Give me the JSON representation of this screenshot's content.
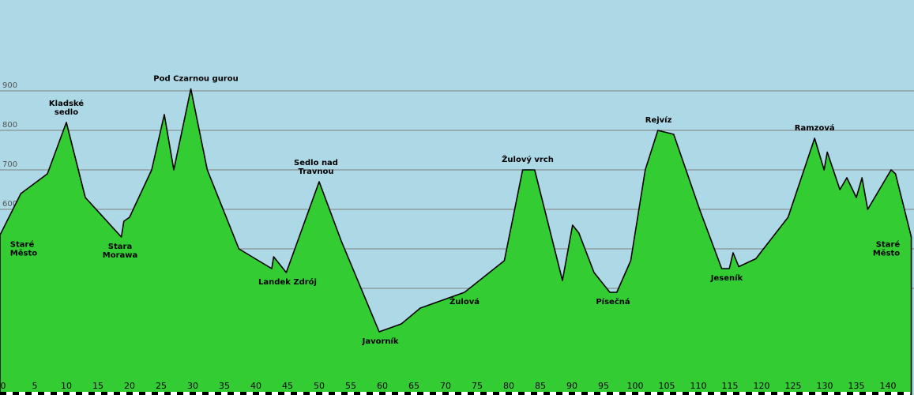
{
  "chart_data": {
    "type": "area",
    "title": "",
    "xlabel": "",
    "ylabel": "",
    "xlim": [
      0,
      144
    ],
    "ylim": [
      0,
      1000
    ],
    "grid": true,
    "colors": {
      "background": "#add8e6",
      "fill": "#33cc33",
      "line": "#000000",
      "grid": "#7f7f7f"
    },
    "y_ticks": [
      600,
      700,
      800,
      900
    ],
    "x_ticks": [
      0,
      5,
      10,
      15,
      20,
      25,
      30,
      35,
      40,
      45,
      50,
      55,
      60,
      65,
      70,
      75,
      80,
      85,
      90,
      95,
      100,
      105,
      110,
      115,
      120,
      125,
      130,
      135,
      140
    ],
    "profile": {
      "x": [
        0,
        3.3,
        7.5,
        10.5,
        13.5,
        19.2,
        19.6,
        20.5,
        24,
        26,
        27.5,
        30.2,
        32.8,
        37.8,
        43,
        43.3,
        45.3,
        50.5,
        54,
        60,
        63.5,
        66.5,
        73.5,
        79.8,
        82.7,
        84.6,
        89,
        90.6,
        91.6,
        94,
        96.5,
        97.6,
        99.8,
        102.1,
        104.1,
        106.6,
        110.7,
        114.2,
        115.4,
        116,
        116.9,
        119.6,
        124.7,
        128.9,
        130.4,
        130.9,
        132.9,
        134,
        135.5,
        136.4,
        137.3,
        141,
        141.7,
        144.2
      ],
      "y": [
        535,
        640,
        690,
        820,
        630,
        530,
        570,
        580,
        700,
        840,
        700,
        905,
        700,
        500,
        450,
        480,
        440,
        670,
        520,
        290,
        310,
        350,
        390,
        470,
        700,
        700,
        420,
        560,
        540,
        440,
        390,
        390,
        470,
        700,
        800,
        790,
        600,
        450,
        450,
        490,
        455,
        475,
        580,
        780,
        700,
        745,
        650,
        680,
        630,
        680,
        600,
        700,
        690,
        530
      ]
    },
    "places": [
      {
        "name": [
          "Staré",
          "Město"
        ],
        "x": 1.6,
        "y": 535,
        "pos": "below"
      },
      {
        "name": [
          "Kladské",
          "sedlo"
        ],
        "x": 10.5,
        "y": 820,
        "pos": "above"
      },
      {
        "name": [
          "Stara",
          "Morawa"
        ],
        "x": 19,
        "y": 530,
        "pos": "below"
      },
      {
        "name": [
          "Pod Czarnou gurou"
        ],
        "x": 31,
        "y": 905,
        "pos": "above"
      },
      {
        "name": [
          "Landek Zdrój"
        ],
        "x": 45.5,
        "y": 440,
        "pos": "below"
      },
      {
        "name": [
          "Sedlo nad",
          "Travnou"
        ],
        "x": 50,
        "y": 670,
        "pos": "above"
      },
      {
        "name": [
          "Javorník"
        ],
        "x": 60.2,
        "y": 290,
        "pos": "below"
      },
      {
        "name": [
          "Žulová"
        ],
        "x": 73.5,
        "y": 390,
        "pos": "below"
      },
      {
        "name": [
          "Žulový vrch"
        ],
        "x": 83.5,
        "y": 700,
        "pos": "above"
      },
      {
        "name": [
          "Písečná"
        ],
        "x": 97,
        "y": 390,
        "pos": "below"
      },
      {
        "name": [
          "Rejvíz"
        ],
        "x": 104.2,
        "y": 800,
        "pos": "above"
      },
      {
        "name": [
          "Jeseník"
        ],
        "x": 115,
        "y": 450,
        "pos": "below"
      },
      {
        "name": [
          "Ramzová"
        ],
        "x": 128.9,
        "y": 780,
        "pos": "above"
      },
      {
        "name": [
          "Staré",
          "Město"
        ],
        "x": 142.4,
        "y": 535,
        "pos": "below"
      }
    ]
  }
}
